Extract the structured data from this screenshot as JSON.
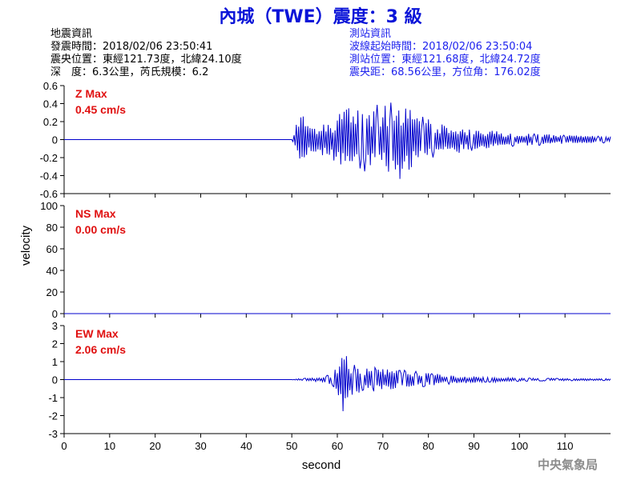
{
  "title": "內城（TWE）震度：3 級",
  "quake_info": [
    "地震資訊",
    "發震時間：2018/02/06 23:50:41",
    "震央位置：東經121.73度，北緯24.10度",
    "深　度：6.3公里，芮氏規模：6.2"
  ],
  "station_info": [
    "測站資訊",
    "波線起始時間：2018/02/06 23:50:04",
    "測站位置：東經121.68度，北緯24.72度",
    "震央距：68.56公里，方位角：176.02度"
  ],
  "footer": "中央氣象局",
  "colors": {
    "trace": "#0000cc",
    "label": "#e01010",
    "title": "#0a14d8",
    "info": "#1e22ee"
  },
  "chart_data": {
    "type": "line",
    "xlabel": "second",
    "ylabel": "velocity",
    "xlim": [
      0,
      120
    ],
    "xticks": [
      0,
      10,
      20,
      30,
      40,
      50,
      60,
      70,
      80,
      90,
      100,
      110
    ],
    "panels": [
      {
        "component": "Z",
        "label_line1": "Z Max",
        "label_line2": "0.45 cm/s",
        "ylim": [
          -0.6,
          0.6
        ],
        "yticks": [
          -0.6,
          -0.4,
          -0.2,
          0,
          0.2,
          0.4,
          0.6
        ],
        "ytick_labels": [
          "-0.6",
          "-0.4",
          "-0.2",
          "0",
          "0.2",
          "0.4",
          "0.6"
        ],
        "max_abs": 0.45,
        "series": {
          "x": [
            0,
            50,
            50.5,
            51.5,
            52.5,
            53.5,
            55,
            57,
            59,
            61,
            63,
            65,
            67,
            69,
            71,
            73,
            75,
            77,
            79,
            81,
            84,
            87,
            90,
            94,
            98,
            102,
            106,
            110,
            114,
            118,
            120
          ],
          "envelope": [
            0,
            0,
            0.08,
            0.25,
            0.33,
            0.2,
            0.15,
            0.2,
            0.22,
            0.38,
            0.4,
            0.33,
            0.38,
            0.4,
            0.4,
            0.45,
            0.42,
            0.3,
            0.25,
            0.2,
            0.18,
            0.15,
            0.12,
            0.1,
            0.08,
            0.07,
            0.06,
            0.05,
            0.05,
            0.04,
            0.04
          ]
        }
      },
      {
        "component": "NS",
        "label_line1": "NS Max",
        "label_line2": "0.00 cm/s",
        "ylim": [
          0,
          100
        ],
        "yticks": [
          0,
          20,
          40,
          60,
          80,
          100
        ],
        "ytick_labels": [
          "0",
          "20",
          "40",
          "60",
          "80",
          "100"
        ],
        "max_abs": 0,
        "series": {
          "x": [
            0,
            120
          ],
          "envelope": [
            0,
            0
          ]
        }
      },
      {
        "component": "EW",
        "label_line1": "EW Max",
        "label_line2": "2.06 cm/s",
        "ylim": [
          -3,
          3
        ],
        "yticks": [
          -3,
          -2,
          -1,
          0,
          1,
          2,
          3
        ],
        "ytick_labels": [
          "-3",
          "-2",
          "-1",
          "0",
          "1",
          "2",
          "3"
        ],
        "max_abs": 2.06,
        "series": {
          "x": [
            0,
            50,
            51,
            55,
            57,
            59,
            60.5,
            61.5,
            62.5,
            64,
            66,
            68,
            70,
            72,
            74,
            76,
            78,
            81,
            84,
            88,
            92,
            96,
            100,
            105,
            110,
            115,
            120
          ],
          "envelope": [
            0,
            0,
            0.05,
            0.1,
            0.2,
            0.35,
            1.0,
            2.06,
            1.1,
            0.8,
            0.6,
            0.7,
            0.65,
            0.6,
            0.55,
            0.5,
            0.45,
            0.35,
            0.28,
            0.2,
            0.16,
            0.13,
            0.1,
            0.08,
            0.07,
            0.06,
            0.05
          ]
        }
      }
    ]
  }
}
